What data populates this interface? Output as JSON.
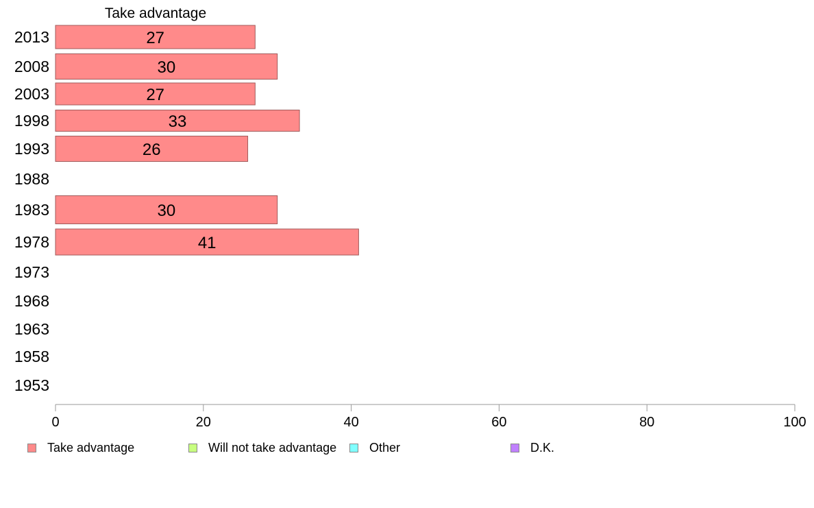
{
  "chart_data": {
    "type": "bar",
    "orientation": "horizontal",
    "title": "Take advantage",
    "xlabel": "",
    "ylabel": "",
    "xlim": [
      0,
      100
    ],
    "x_ticks": [
      "0",
      "20",
      "40",
      "60",
      "80",
      "100"
    ],
    "grid": false,
    "legend_position": "bottom",
    "categories": [
      "2013",
      "2008",
      "2003",
      "1998",
      "1993",
      "1988",
      "1983",
      "1978",
      "1973",
      "1968",
      "1963",
      "1958",
      "1953"
    ],
    "series": [
      {
        "name": "Take advantage",
        "color": "#ff8a8a",
        "values": [
          27,
          30,
          27,
          33,
          26,
          null,
          30,
          41,
          null,
          null,
          null,
          null,
          null
        ]
      }
    ],
    "data_labels": [
      "27",
      "30",
      "27",
      "33",
      "26",
      "",
      "30",
      "41",
      "",
      "",
      "",
      "",
      ""
    ]
  },
  "legend": [
    {
      "label": "Take advantage",
      "color": "#ff8a8a"
    },
    {
      "label": "Will not take advantage",
      "color": "#c8ff80"
    },
    {
      "label": "Other",
      "color": "#80ffff"
    },
    {
      "label": "D.K.",
      "color": "#c080ff"
    }
  ]
}
